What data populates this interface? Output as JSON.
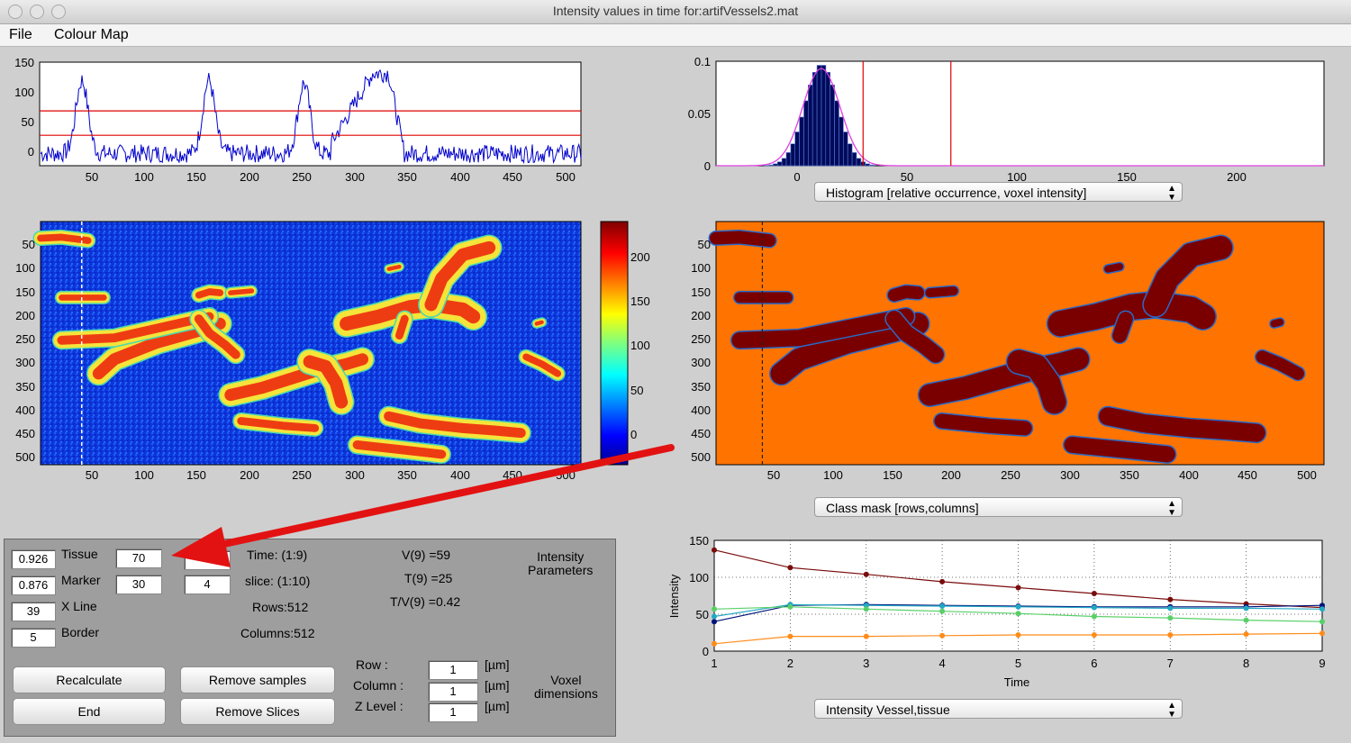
{
  "window": {
    "title": "Intensity values in time for:artifVessels2.mat"
  },
  "menu": {
    "items": [
      "File",
      "Colour Map"
    ]
  },
  "profile_chart": {
    "y_ticks": [
      "150",
      "100",
      "50",
      "0"
    ],
    "x_ticks": [
      "50",
      "100",
      "150",
      "200",
      "250",
      "300",
      "350",
      "400",
      "450",
      "500"
    ],
    "thresholds": [
      70,
      30
    ],
    "peaks": [
      {
        "center": 40,
        "height": 120
      },
      {
        "center": 160,
        "height": 120
      },
      {
        "center": 250,
        "height": 115
      },
      {
        "center": 300,
        "height": 132
      }
    ]
  },
  "histogram_chart": {
    "y_ticks": [
      "0.1",
      "0.05",
      "0"
    ],
    "x_ticks": [
      "0",
      "50",
      "100",
      "150",
      "200"
    ],
    "markers": [
      30,
      70
    ],
    "dropdown": "Histogram  [relative occurrence, voxel intensity]"
  },
  "image_chart": {
    "y_ticks": [
      "50",
      "100",
      "150",
      "200",
      "250",
      "300",
      "350",
      "400",
      "450",
      "500"
    ],
    "x_ticks": [
      "50",
      "100",
      "150",
      "200",
      "250",
      "300",
      "350",
      "400",
      "450",
      "500"
    ],
    "marker_column": 39
  },
  "colorbar": {
    "ticks": [
      "200",
      "150",
      "100",
      "50",
      "0"
    ]
  },
  "mask_chart": {
    "y_ticks": [
      "50",
      "100",
      "150",
      "200",
      "250",
      "300",
      "350",
      "400",
      "450",
      "500"
    ],
    "x_ticks": [
      "50",
      "100",
      "150",
      "200",
      "250",
      "300",
      "350",
      "400",
      "450",
      "500"
    ],
    "dropdown": "Class mask [rows,columns]"
  },
  "chart_data": {
    "type": "line",
    "xlabel": "Time",
    "ylabel": "Intensity",
    "x": [
      1,
      2,
      3,
      4,
      5,
      6,
      7,
      8,
      9
    ],
    "ylim": [
      0,
      150
    ],
    "y_ticks": [
      "150",
      "100",
      "50",
      "0"
    ],
    "x_ticks": [
      "1",
      "2",
      "3",
      "4",
      "5",
      "6",
      "7",
      "8",
      "9"
    ],
    "grid": true,
    "series": [
      {
        "color": "#7a0c0c",
        "values": [
          137,
          113,
          104,
          94,
          86,
          78,
          70,
          64,
          59
        ]
      },
      {
        "color": "#00137a",
        "values": [
          40,
          62,
          63,
          62,
          61,
          60,
          60,
          60,
          62
        ]
      },
      {
        "color": "#23a8c4",
        "values": [
          47,
          63,
          62,
          61,
          60,
          59,
          58,
          58,
          57
        ]
      },
      {
        "color": "#58d068",
        "values": [
          57,
          60,
          57,
          54,
          51,
          47,
          45,
          42,
          40
        ]
      },
      {
        "color": "#ff8c1a",
        "values": [
          10,
          20,
          20,
          21,
          22,
          22,
          22,
          23,
          24
        ]
      }
    ],
    "dropdown": "Intensity Vessel,tissue"
  },
  "params": {
    "tissue_value": "0.926",
    "tissue_label": "Tissue",
    "tissue_thr": "70",
    "marker_value": "0.876",
    "marker_label": "Marker",
    "marker_thr": "30",
    "xline_value": "39",
    "xline_label": "X Line",
    "border_value": "5",
    "border_label": "Border",
    "slice_input": "4",
    "time": "Time:  (1:9)",
    "slice": "slice: (1:10)",
    "rows": "Rows:512",
    "columns": "Columns:512",
    "v9": "V(9) =59",
    "t9": "T(9) =25",
    "tv9": "T/V(9) =0.42",
    "intensity_params": "Intensity\nParameters",
    "row_label": "Row        :",
    "column_label": "Column  :",
    "zlevel_label": "Z Level  :",
    "row_value": "1",
    "column_value": "1",
    "zlevel_value": "1",
    "unit": "[µm]",
    "voxel_dims": "Voxel\ndimensions"
  },
  "buttons": {
    "recalculate": "Recalculate",
    "end": "End",
    "remove_samples": "Remove samples",
    "remove_slices": "Remove Slices"
  }
}
